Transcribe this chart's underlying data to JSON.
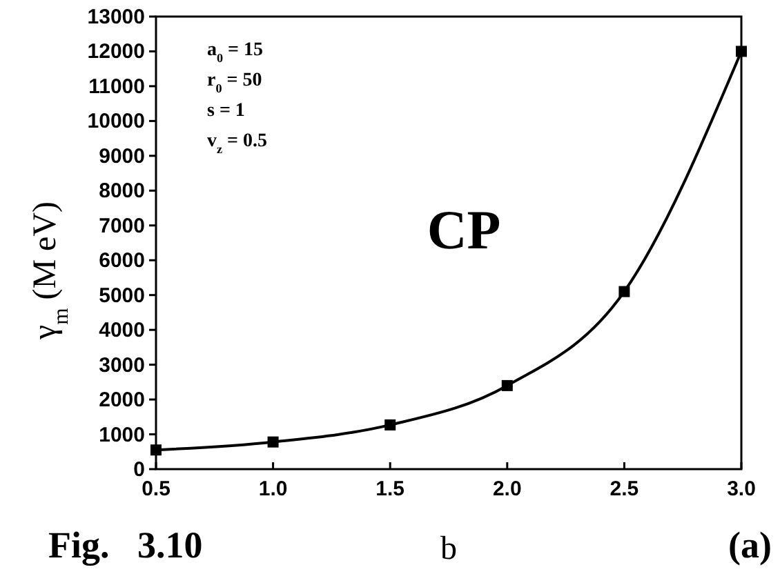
{
  "chart_data": {
    "type": "line",
    "xlabel": "b",
    "ylabel": "γ$_{m}$ (M eV)",
    "annotations": [
      "a$_{0}$ = 15",
      "r$_{0}$ = 50",
      "s = 1",
      "v$_{z}$ = 0.5",
      "CP",
      "Fig.   3.10",
      "(a)"
    ],
    "x": [
      0.5,
      1.0,
      1.5,
      2.0,
      2.5,
      3.0
    ],
    "series": [
      {
        "color": "#000000",
        "values": [
          550,
          780,
          1270,
          2400,
          5100,
          12000
        ]
      }
    ],
    "xlim": [
      0.5,
      3.0
    ],
    "xticks": [
      {
        "value": 0.5,
        "label": "0.5"
      },
      {
        "value": 1.0,
        "label": "1.0"
      },
      {
        "value": 1.5,
        "label": "1.5"
      },
      {
        "value": 2.0,
        "label": "2.0"
      },
      {
        "value": 2.5,
        "label": "2.5"
      },
      {
        "value": 3.0,
        "label": "3.0"
      }
    ],
    "ylim": [
      0,
      13000
    ],
    "yticks": [
      0,
      1000,
      2000,
      3000,
      4000,
      5000,
      6000,
      7000,
      8000,
      9000,
      10000,
      11000,
      12000,
      13000
    ],
    "grid": false,
    "marker": "square",
    "line_style": "solid"
  }
}
